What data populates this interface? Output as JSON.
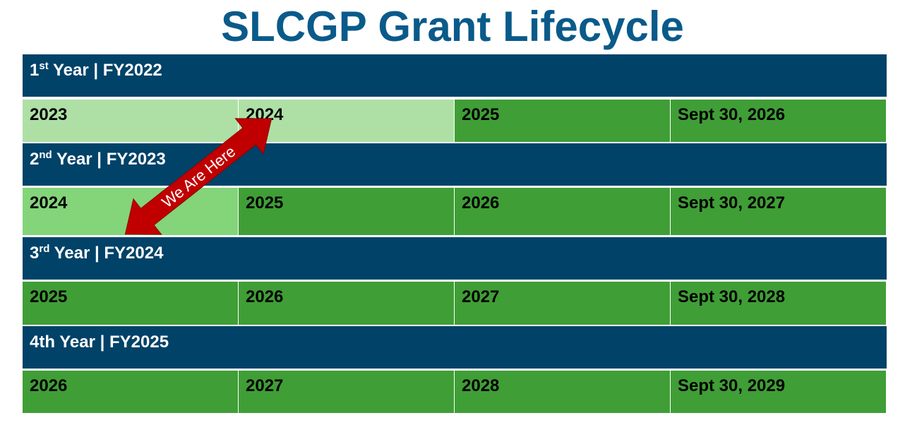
{
  "title": "SLCGP Grant Lifecycle",
  "colors": {
    "header": "#004268",
    "cell_default": "#409e36",
    "cell_past": "#aee0a6",
    "cell_current": "#84d47a",
    "arrow": "#c00000",
    "title": "#0a5a8a"
  },
  "years": [
    {
      "num": "1",
      "sup": "st",
      "label": " Year | FY2022",
      "cells": [
        "2023",
        "2024",
        "2025",
        "Sept 30, 2026"
      ],
      "shades": [
        "past",
        "past",
        "default",
        "default"
      ]
    },
    {
      "num": "2",
      "sup": "nd",
      "label": " Year | FY2023",
      "cells": [
        "2024",
        "2025",
        "2026",
        "Sept 30, 2027"
      ],
      "shades": [
        "current",
        "default",
        "default",
        "default"
      ]
    },
    {
      "num": "3",
      "sup": "rd",
      "label": " Year | FY2024",
      "cells": [
        "2025",
        "2026",
        "2027",
        "Sept 30, 2028"
      ],
      "shades": [
        "default",
        "default",
        "default",
        "default"
      ]
    },
    {
      "num": "4th",
      "sup": "",
      "label": " Year | FY2025",
      "cells": [
        "2026",
        "2027",
        "2028",
        " Sept 30, 2029"
      ],
      "shades": [
        "default",
        "default",
        "default",
        "default"
      ]
    }
  ],
  "arrow": {
    "label": "We Are Here",
    "icon": "double-arrow-icon"
  }
}
